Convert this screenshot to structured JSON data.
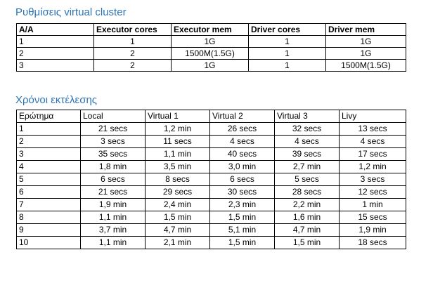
{
  "config_section": {
    "title": "Ρυθμίσεις virtual cluster",
    "headers": [
      "A/A",
      "Executor cores",
      "Executor mem",
      "Driver cores",
      "Driver mem"
    ],
    "rows": [
      [
        "1",
        "1",
        "1G",
        "1",
        "1G"
      ],
      [
        "2",
        "2",
        "1500M(1.5G)",
        "1",
        "1G"
      ],
      [
        "3",
        "2",
        "1G",
        "1",
        "1500M(1.5G)"
      ]
    ]
  },
  "times_section": {
    "title": "Χρόνοι εκτέλεσης",
    "headers": [
      "Ερώτημα",
      "Local",
      "Virtual 1",
      "Virtual 2",
      "Virtual 3",
      "Livy"
    ],
    "rows": [
      [
        "1",
        "21 secs",
        "1,2 min",
        "26 secs",
        "32 secs",
        "13 secs"
      ],
      [
        "2",
        "3 secs",
        "11 secs",
        "4 secs",
        "4 secs",
        "4 secs"
      ],
      [
        "3",
        "35 secs",
        "1,1 min",
        "40 secs",
        "39 secs",
        "17 secs"
      ],
      [
        "4",
        "1,8 min",
        "3,5 min",
        "3,0 min",
        "2,7 min",
        "1,2 min"
      ],
      [
        "5",
        "6 secs",
        "8 secs",
        "6 secs",
        "5 secs",
        "3 secs"
      ],
      [
        "6",
        "21 secs",
        "29 secs",
        "30 secs",
        "28 secs",
        "12 secs"
      ],
      [
        "7",
        "1,9 min",
        "2,4 min",
        "2,3 min",
        "2,2 min",
        "1 min"
      ],
      [
        "8",
        "1,1 min",
        "1,5 min",
        "1,5 min",
        "1,6 min",
        "15 secs"
      ],
      [
        "9",
        "3,7 min",
        "4,7 min",
        "5,1 min",
        "4,7 min",
        "1,9 min"
      ],
      [
        "10",
        "1,1 min",
        "2,1 min",
        "1,5 min",
        "1,5 min",
        "18 secs"
      ]
    ]
  },
  "colors": {
    "heading": "#2e74b5",
    "border": "#000000",
    "background": "#ffffff"
  }
}
